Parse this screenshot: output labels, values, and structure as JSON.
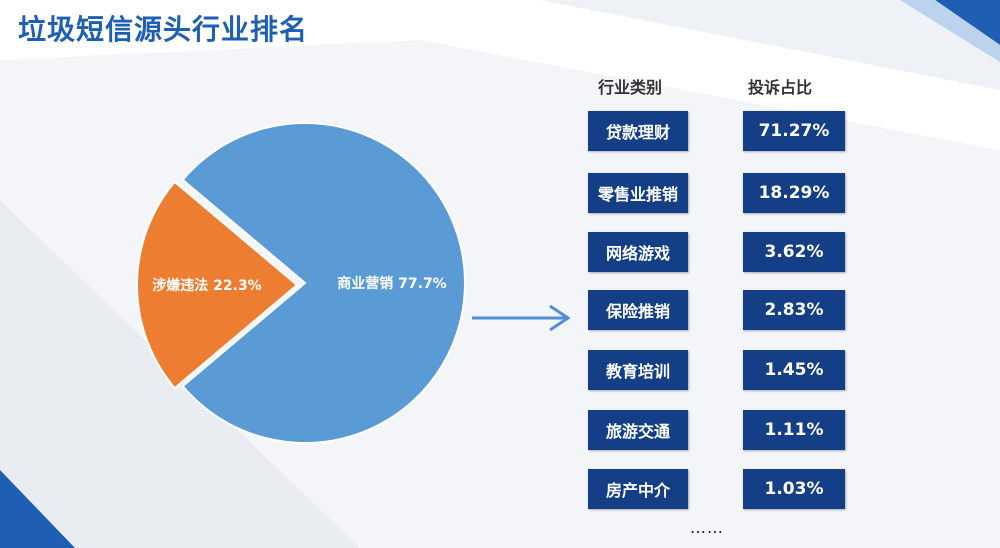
{
  "title": "垃圾短信源头行业排名",
  "chart_data": [
    {
      "type": "pie",
      "slices": [
        {
          "label": "商业营销",
          "value": 77.7,
          "color": "#5b9bd5"
        },
        {
          "label": "涉嫌违法",
          "value": 22.3,
          "color": "#ed7d31"
        }
      ]
    },
    {
      "type": "table",
      "columns": [
        "行业类别",
        "投诉占比"
      ],
      "rows": [
        [
          "贷款理财",
          "71.27%"
        ],
        [
          "零售业推销",
          "18.29%"
        ],
        [
          "网络游戏",
          "3.62%"
        ],
        [
          "保险推销",
          "2.83%"
        ],
        [
          "教育培训",
          "1.45%"
        ],
        [
          "旅游交通",
          "1.11%"
        ],
        [
          "房产中介",
          "1.03%"
        ]
      ]
    }
  ],
  "pie_labels": [
    "商业营销 77.7%",
    "涉嫌违法 22.3%"
  ],
  "table_header": {
    "category": "行业类别",
    "share": "投诉占比"
  },
  "table_rows": [
    {
      "category": "贷款理财",
      "share": "71.27%"
    },
    {
      "category": "零售业推销",
      "share": "18.29%"
    },
    {
      "category": "网络游戏",
      "share": "3.62%"
    },
    {
      "category": "保险推销",
      "share": "2.83%"
    },
    {
      "category": "教育培训",
      "share": "1.45%"
    },
    {
      "category": "旅游交通",
      "share": "1.11%"
    },
    {
      "category": "房产中介",
      "share": "1.03%"
    }
  ],
  "more_indicator": "……",
  "colors": {
    "title": "#1f5fb3",
    "box": "#143f86",
    "arrow": "#4f8fd4"
  }
}
